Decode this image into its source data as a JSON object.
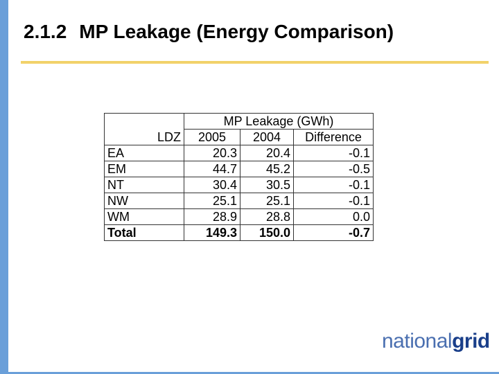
{
  "slide": {
    "number": "2.1.2",
    "title": "MP Leakage (Energy Comparison)"
  },
  "table": {
    "group_header": "MP Leakage (GWh)",
    "row_header": "LDZ",
    "columns": [
      "2005",
      "2004",
      "Difference"
    ],
    "rows": [
      {
        "ldz": "EA",
        "y2005": "20.3",
        "y2004": "20.4",
        "diff": "-0.1"
      },
      {
        "ldz": "EM",
        "y2005": "44.7",
        "y2004": "45.2",
        "diff": "-0.5"
      },
      {
        "ldz": "NT",
        "y2005": "30.4",
        "y2004": "30.5",
        "diff": "-0.1"
      },
      {
        "ldz": "NW",
        "y2005": "25.1",
        "y2004": "25.1",
        "diff": "-0.1"
      },
      {
        "ldz": "WM",
        "y2005": "28.9",
        "y2004": "28.8",
        "diff": "0.0"
      }
    ],
    "total": {
      "ldz": "Total",
      "y2005": "149.3",
      "y2004": "150.0",
      "diff": "-0.7"
    }
  },
  "logo": {
    "part1": "national",
    "part2": "grid"
  },
  "colors": {
    "accent_bar": "#6a9fd9",
    "title_rule": "#f2d26a",
    "logo_light": "#4a6fb0",
    "logo_dark": "#1a3f8a"
  }
}
